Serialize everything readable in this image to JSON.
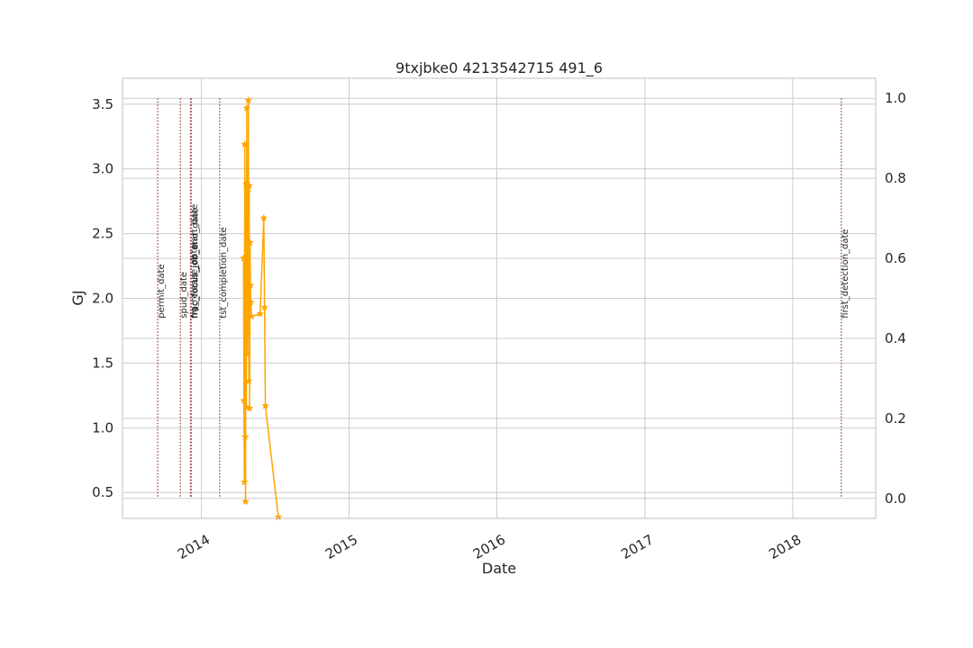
{
  "chart_data": {
    "type": "line",
    "title": "9txjbke0 4213542715 491_6",
    "xlabel": "Date",
    "ylabel": "GJ",
    "x_ticks": [
      "2014",
      "2015",
      "2016",
      "2017",
      "2018"
    ],
    "xlim": [
      "2013-06-20",
      "2018-07-25"
    ],
    "ylim": [
      0.3,
      3.7
    ],
    "y_ticks": [
      "0.5",
      "1.0",
      "1.5",
      "2.0",
      "2.5",
      "3.0",
      "3.5"
    ],
    "y2_ticks": [
      "0.0",
      "0.2",
      "0.4",
      "0.6",
      "0.8",
      "1.0"
    ],
    "y2lim": [
      -0.05,
      1.05
    ],
    "grid": true,
    "series": [
      {
        "color": "#ffa500",
        "marker": "star",
        "points": [
          [
            "2014-04-15",
            2.31
          ],
          [
            "2014-04-16",
            1.21
          ],
          [
            "2014-04-17",
            0.58
          ],
          [
            "2014-04-18",
            3.19
          ],
          [
            "2014-04-19",
            0.93
          ],
          [
            "2014-04-20",
            0.43
          ],
          [
            "2014-04-21",
            2.88
          ],
          [
            "2014-04-22",
            1.16
          ],
          [
            "2014-04-23",
            3.47
          ],
          [
            "2014-04-24",
            1.57
          ],
          [
            "2014-04-25",
            2.82
          ],
          [
            "2014-04-26",
            1.72
          ],
          [
            "2014-04-27",
            3.53
          ],
          [
            "2014-04-28",
            1.36
          ],
          [
            "2014-04-29",
            2.87
          ],
          [
            "2014-04-30",
            1.15
          ],
          [
            "2014-05-01",
            2.43
          ],
          [
            "2014-05-02",
            2.1
          ],
          [
            "2014-05-03",
            1.97
          ],
          [
            "2014-05-05",
            1.86
          ],
          [
            "2014-05-26",
            1.88
          ],
          [
            "2014-06-04",
            2.62
          ],
          [
            "2014-06-06",
            1.93
          ],
          [
            "2014-06-08",
            1.17
          ],
          [
            "2014-07-10",
            0.31
          ]
        ]
      }
    ],
    "vlines": [
      {
        "label": "permit_date",
        "date": "2013-09-15"
      },
      {
        "label": "spud_date",
        "date": "2013-11-10"
      },
      {
        "label": "rig_release_date",
        "date": "2013-12-05"
      },
      {
        "label": "frac_focus_job_start_date",
        "date": "2013-12-06"
      },
      {
        "label": "frac_focus_job_end_date",
        "date": "2013-12-07"
      },
      {
        "label": "tst_completion_date",
        "date": "2014-02-15"
      },
      {
        "label": "first_detection_date",
        "date": "2018-05-01"
      }
    ],
    "colors": {
      "line": "#ffa500",
      "vline": "#a05050",
      "ylabel": "#1f77b4",
      "grid": "#cccccc",
      "spine": "#bfbfbf"
    }
  }
}
